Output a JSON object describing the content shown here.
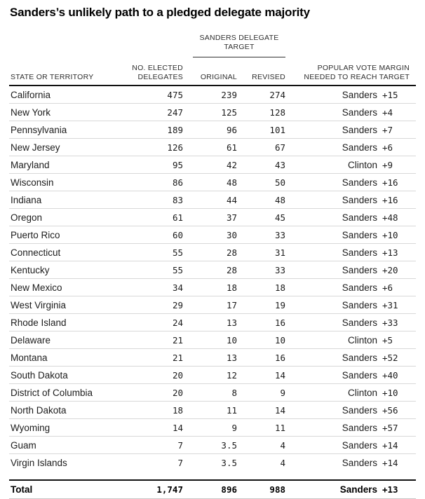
{
  "title": "Sanders’s unlikely path to a pledged delegate majority",
  "header": {
    "group_line1": "SANDERS DELEGATE",
    "group_line2": "TARGET",
    "state": "STATE OR TERRITORY",
    "elected_line1": "NO. ELECTED",
    "elected_line2": "DELEGATES",
    "original": "ORIGINAL",
    "revised": "REVISED",
    "margin_line1": "POPULAR VOTE MARGIN",
    "margin_line2": "NEEDED TO REACH TARGET"
  },
  "colors": {
    "text": "#1c1c1c",
    "heavy_rule": "#111111",
    "row_separator": "#d8d8d8",
    "total_bottom_rule": "#c6c6c6"
  },
  "chart_data": {
    "type": "table",
    "title": "Sanders’s unlikely path to a pledged delegate majority",
    "column_group": {
      "label": "SANDERS DELEGATE TARGET",
      "spans": [
        "ORIGINAL",
        "REVISED"
      ]
    },
    "columns": [
      "STATE OR TERRITORY",
      "NO. ELECTED DELEGATES",
      "ORIGINAL",
      "REVISED",
      "POPULAR VOTE MARGIN NEEDED TO REACH TARGET — candidate",
      "POPULAR VOTE MARGIN NEEDED TO REACH TARGET — margin"
    ],
    "rows": [
      [
        "California",
        "475",
        "239",
        "274",
        "Sanders",
        "+15"
      ],
      [
        "New York",
        "247",
        "125",
        "128",
        "Sanders",
        "+4"
      ],
      [
        "Pennsylvania",
        "189",
        "96",
        "101",
        "Sanders",
        "+7"
      ],
      [
        "New Jersey",
        "126",
        "61",
        "67",
        "Sanders",
        "+6"
      ],
      [
        "Maryland",
        "95",
        "42",
        "43",
        "Clinton",
        "+9"
      ],
      [
        "Wisconsin",
        "86",
        "48",
        "50",
        "Sanders",
        "+16"
      ],
      [
        "Indiana",
        "83",
        "44",
        "48",
        "Sanders",
        "+16"
      ],
      [
        "Oregon",
        "61",
        "37",
        "45",
        "Sanders",
        "+48"
      ],
      [
        "Puerto Rico",
        "60",
        "30",
        "33",
        "Sanders",
        "+10"
      ],
      [
        "Connecticut",
        "55",
        "28",
        "31",
        "Sanders",
        "+13"
      ],
      [
        "Kentucky",
        "55",
        "28",
        "33",
        "Sanders",
        "+20"
      ],
      [
        "New Mexico",
        "34",
        "18",
        "18",
        "Sanders",
        "+6"
      ],
      [
        "West Virginia",
        "29",
        "17",
        "19",
        "Sanders",
        "+31"
      ],
      [
        "Rhode Island",
        "24",
        "13",
        "16",
        "Sanders",
        "+33"
      ],
      [
        "Delaware",
        "21",
        "10",
        "10",
        "Clinton",
        "+5"
      ],
      [
        "Montana",
        "21",
        "13",
        "16",
        "Sanders",
        "+52"
      ],
      [
        "South Dakota",
        "20",
        "12",
        "14",
        "Sanders",
        "+40"
      ],
      [
        "District of Columbia",
        "20",
        "8",
        "9",
        "Clinton",
        "+10"
      ],
      [
        "North Dakota",
        "18",
        "11",
        "14",
        "Sanders",
        "+56"
      ],
      [
        "Wyoming",
        "14",
        "9",
        "11",
        "Sanders",
        "+57"
      ],
      [
        "Guam",
        "7",
        "3.5",
        "4",
        "Sanders",
        "+14"
      ],
      [
        "Virgin Islands",
        "7",
        "3.5",
        "4",
        "Sanders",
        "+14"
      ]
    ],
    "total": [
      "Total",
      "1,747",
      "896",
      "988",
      "Sanders",
      "+13"
    ]
  }
}
